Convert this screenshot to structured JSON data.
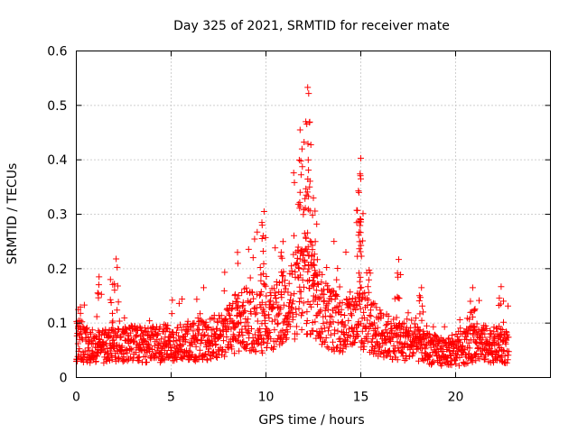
{
  "chart_data": {
    "type": "scatter",
    "title": "Day 325 of 2021, SRMTID for receiver mate",
    "xlabel": "GPS time / hours",
    "ylabel": "SRMTID / TECUs",
    "xlim": [
      0,
      25
    ],
    "ylim": [
      0,
      0.6
    ],
    "xticks": [
      0,
      5,
      10,
      15,
      20
    ],
    "yticks": [
      0,
      0.1,
      0.2,
      0.3,
      0.4,
      0.5,
      0.6
    ],
    "xtick_labels": [
      "0",
      "5",
      "10",
      "15",
      "20"
    ],
    "ytick_labels": [
      "0",
      "0.1",
      "0.2",
      "0.3",
      "0.4",
      "0.5",
      "0.6"
    ],
    "grid": true,
    "marker": "+",
    "color": "#ff0000",
    "series_name": "SRMTID",
    "time_range_hours": [
      0,
      22.8
    ],
    "sample_interval_hours": 0.0125,
    "baseline_profile": [
      {
        "x": 0.0,
        "y": 0.065
      },
      {
        "x": 1.0,
        "y": 0.055
      },
      {
        "x": 2.0,
        "y": 0.06
      },
      {
        "x": 3.0,
        "y": 0.062
      },
      {
        "x": 4.0,
        "y": 0.06
      },
      {
        "x": 5.0,
        "y": 0.063
      },
      {
        "x": 6.0,
        "y": 0.065
      },
      {
        "x": 7.0,
        "y": 0.07
      },
      {
        "x": 8.0,
        "y": 0.085
      },
      {
        "x": 9.0,
        "y": 0.11
      },
      {
        "x": 10.0,
        "y": 0.095
      },
      {
        "x": 11.0,
        "y": 0.13
      },
      {
        "x": 12.0,
        "y": 0.17
      },
      {
        "x": 12.5,
        "y": 0.16
      },
      {
        "x": 13.0,
        "y": 0.12
      },
      {
        "x": 14.0,
        "y": 0.095
      },
      {
        "x": 15.0,
        "y": 0.11
      },
      {
        "x": 16.0,
        "y": 0.08
      },
      {
        "x": 17.0,
        "y": 0.07
      },
      {
        "x": 18.0,
        "y": 0.06
      },
      {
        "x": 19.0,
        "y": 0.05
      },
      {
        "x": 20.0,
        "y": 0.045
      },
      {
        "x": 21.0,
        "y": 0.065
      },
      {
        "x": 22.0,
        "y": 0.06
      },
      {
        "x": 22.8,
        "y": 0.055
      }
    ],
    "peaks": [
      {
        "x": 0.1,
        "y": 0.125
      },
      {
        "x": 1.2,
        "y": 0.185
      },
      {
        "x": 1.8,
        "y": 0.18
      },
      {
        "x": 2.1,
        "y": 0.218
      },
      {
        "x": 8.5,
        "y": 0.23
      },
      {
        "x": 9.9,
        "y": 0.305
      },
      {
        "x": 9.8,
        "y": 0.28
      },
      {
        "x": 10.9,
        "y": 0.25
      },
      {
        "x": 11.8,
        "y": 0.455
      },
      {
        "x": 11.9,
        "y": 0.42
      },
      {
        "x": 12.1,
        "y": 0.47
      },
      {
        "x": 12.2,
        "y": 0.533
      },
      {
        "x": 12.25,
        "y": 0.522
      },
      {
        "x": 12.3,
        "y": 0.35
      },
      {
        "x": 12.5,
        "y": 0.33
      },
      {
        "x": 12.6,
        "y": 0.25
      },
      {
        "x": 15.0,
        "y": 0.403
      },
      {
        "x": 15.0,
        "y": 0.365
      },
      {
        "x": 14.9,
        "y": 0.34
      },
      {
        "x": 15.0,
        "y": 0.29
      },
      {
        "x": 17.0,
        "y": 0.217
      },
      {
        "x": 18.2,
        "y": 0.165
      },
      {
        "x": 20.9,
        "y": 0.165
      },
      {
        "x": 22.4,
        "y": 0.167
      }
    ]
  }
}
